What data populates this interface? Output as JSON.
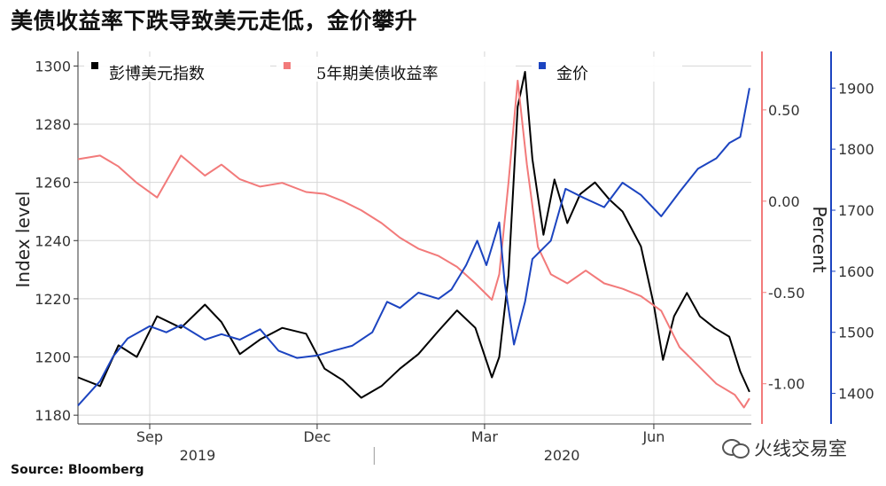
{
  "title": "美债收益率下跌导致美元走低，金价攀升",
  "source": "Source: Bloomberg",
  "watermark": "火线交易室",
  "chart_data": {
    "type": "line",
    "ylabel_left": "Index level",
    "ylabel_right": "Percent",
    "y_left_ticks": [
      1180,
      1200,
      1220,
      1240,
      1260,
      1280,
      1300
    ],
    "y_left_range": [
      1177,
      1305
    ],
    "y_right1_ticks": [
      "0.50",
      "0.00",
      "-0.50",
      "-1.00"
    ],
    "y_right1_range": [
      -1.22,
      0.82
    ],
    "y_right2_ticks": [
      1400,
      1500,
      1600,
      1700,
      1800,
      1900
    ],
    "y_right2_range": [
      1350,
      1960
    ],
    "x_range": [
      "2019-07-24",
      "2020-07-24"
    ],
    "x_month_ticks": [
      {
        "label": "Sep",
        "date": "2019-09-01"
      },
      {
        "label": "Dec",
        "date": "2019-12-01"
      },
      {
        "label": "Mar",
        "date": "2020-03-01"
      },
      {
        "label": "Jun",
        "date": "2020-06-01"
      }
    ],
    "x_years": [
      {
        "label": "2019",
        "date": "2019-09-27"
      },
      {
        "label": "2020",
        "date": "2020-04-12"
      }
    ],
    "legend": [
      "彭博美元指数",
      "5年期美债收益率",
      "金价"
    ],
    "series": [
      {
        "name": "彭博美元指数",
        "color": "#000000",
        "axis": "left",
        "points": [
          [
            "2019-07-24",
            1193
          ],
          [
            "2019-08-05",
            1190
          ],
          [
            "2019-08-15",
            1204
          ],
          [
            "2019-08-25",
            1200
          ],
          [
            "2019-09-05",
            1214
          ],
          [
            "2019-09-18",
            1210
          ],
          [
            "2019-10-01",
            1218
          ],
          [
            "2019-10-10",
            1212
          ],
          [
            "2019-10-20",
            1201
          ],
          [
            "2019-10-31",
            1206
          ],
          [
            "2019-11-12",
            1210
          ],
          [
            "2019-11-25",
            1208
          ],
          [
            "2019-12-05",
            1196
          ],
          [
            "2019-12-15",
            1192
          ],
          [
            "2019-12-25",
            1186
          ],
          [
            "2020-01-05",
            1190
          ],
          [
            "2020-01-15",
            1196
          ],
          [
            "2020-01-25",
            1201
          ],
          [
            "2020-02-05",
            1209
          ],
          [
            "2020-02-15",
            1216
          ],
          [
            "2020-02-25",
            1210
          ],
          [
            "2020-03-05",
            1193
          ],
          [
            "2020-03-09",
            1200
          ],
          [
            "2020-03-14",
            1228
          ],
          [
            "2020-03-19",
            1286
          ],
          [
            "2020-03-23",
            1298
          ],
          [
            "2020-03-27",
            1268
          ],
          [
            "2020-04-02",
            1242
          ],
          [
            "2020-04-08",
            1261
          ],
          [
            "2020-04-15",
            1246
          ],
          [
            "2020-04-22",
            1256
          ],
          [
            "2020-04-30",
            1260
          ],
          [
            "2020-05-08",
            1254
          ],
          [
            "2020-05-15",
            1250
          ],
          [
            "2020-05-25",
            1238
          ],
          [
            "2020-06-01",
            1218
          ],
          [
            "2020-06-06",
            1199
          ],
          [
            "2020-06-12",
            1214
          ],
          [
            "2020-06-19",
            1222
          ],
          [
            "2020-06-26",
            1214
          ],
          [
            "2020-07-04",
            1210
          ],
          [
            "2020-07-12",
            1207
          ],
          [
            "2020-07-18",
            1195
          ],
          [
            "2020-07-23",
            1188
          ]
        ]
      },
      {
        "name": "5年期美债收益率",
        "color": "#f27a7a",
        "axis": "right1",
        "points": [
          [
            "2019-07-24",
            0.23
          ],
          [
            "2019-08-05",
            0.25
          ],
          [
            "2019-08-15",
            0.19
          ],
          [
            "2019-08-25",
            0.1
          ],
          [
            "2019-09-05",
            0.02
          ],
          [
            "2019-09-18",
            0.25
          ],
          [
            "2019-10-01",
            0.14
          ],
          [
            "2019-10-10",
            0.2
          ],
          [
            "2019-10-20",
            0.12
          ],
          [
            "2019-10-31",
            0.08
          ],
          [
            "2019-11-12",
            0.1
          ],
          [
            "2019-11-25",
            0.05
          ],
          [
            "2019-12-05",
            0.04
          ],
          [
            "2019-12-15",
            0.0
          ],
          [
            "2019-12-25",
            -0.05
          ],
          [
            "2020-01-05",
            -0.12
          ],
          [
            "2020-01-15",
            -0.2
          ],
          [
            "2020-01-25",
            -0.26
          ],
          [
            "2020-02-05",
            -0.3
          ],
          [
            "2020-02-15",
            -0.36
          ],
          [
            "2020-02-25",
            -0.45
          ],
          [
            "2020-03-05",
            -0.54
          ],
          [
            "2020-03-09",
            -0.4
          ],
          [
            "2020-03-14",
            0.1
          ],
          [
            "2020-03-19",
            0.66
          ],
          [
            "2020-03-24",
            0.2
          ],
          [
            "2020-03-30",
            -0.25
          ],
          [
            "2020-04-06",
            -0.4
          ],
          [
            "2020-04-15",
            -0.45
          ],
          [
            "2020-04-25",
            -0.38
          ],
          [
            "2020-05-05",
            -0.45
          ],
          [
            "2020-05-15",
            -0.48
          ],
          [
            "2020-05-25",
            -0.52
          ],
          [
            "2020-06-05",
            -0.6
          ],
          [
            "2020-06-15",
            -0.8
          ],
          [
            "2020-06-25",
            -0.9
          ],
          [
            "2020-07-05",
            -1.0
          ],
          [
            "2020-07-15",
            -1.06
          ],
          [
            "2020-07-20",
            -1.13
          ],
          [
            "2020-07-23",
            -1.08
          ]
        ]
      },
      {
        "name": "金价",
        "color": "#1c44c0",
        "axis": "right2",
        "points": [
          [
            "2019-07-24",
            1380
          ],
          [
            "2019-08-05",
            1420
          ],
          [
            "2019-08-12",
            1460
          ],
          [
            "2019-08-20",
            1490
          ],
          [
            "2019-09-01",
            1510
          ],
          [
            "2019-09-10",
            1500
          ],
          [
            "2019-09-18",
            1512
          ],
          [
            "2019-10-01",
            1488
          ],
          [
            "2019-10-10",
            1497
          ],
          [
            "2019-10-20",
            1488
          ],
          [
            "2019-10-31",
            1505
          ],
          [
            "2019-11-10",
            1470
          ],
          [
            "2019-11-20",
            1458
          ],
          [
            "2019-12-01",
            1462
          ],
          [
            "2019-12-10",
            1470
          ],
          [
            "2019-12-20",
            1478
          ],
          [
            "2019-12-31",
            1500
          ],
          [
            "2020-01-08",
            1550
          ],
          [
            "2020-01-15",
            1540
          ],
          [
            "2020-01-25",
            1565
          ],
          [
            "2020-02-05",
            1555
          ],
          [
            "2020-02-12",
            1570
          ],
          [
            "2020-02-20",
            1610
          ],
          [
            "2020-02-26",
            1650
          ],
          [
            "2020-03-02",
            1610
          ],
          [
            "2020-03-09",
            1680
          ],
          [
            "2020-03-12",
            1580
          ],
          [
            "2020-03-17",
            1480
          ],
          [
            "2020-03-23",
            1550
          ],
          [
            "2020-03-27",
            1620
          ],
          [
            "2020-04-06",
            1650
          ],
          [
            "2020-04-14",
            1735
          ],
          [
            "2020-04-24",
            1720
          ],
          [
            "2020-05-05",
            1705
          ],
          [
            "2020-05-15",
            1745
          ],
          [
            "2020-05-25",
            1725
          ],
          [
            "2020-06-05",
            1690
          ],
          [
            "2020-06-15",
            1730
          ],
          [
            "2020-06-25",
            1768
          ],
          [
            "2020-07-05",
            1785
          ],
          [
            "2020-07-12",
            1810
          ],
          [
            "2020-07-18",
            1820
          ],
          [
            "2020-07-23",
            1900
          ]
        ]
      }
    ]
  }
}
